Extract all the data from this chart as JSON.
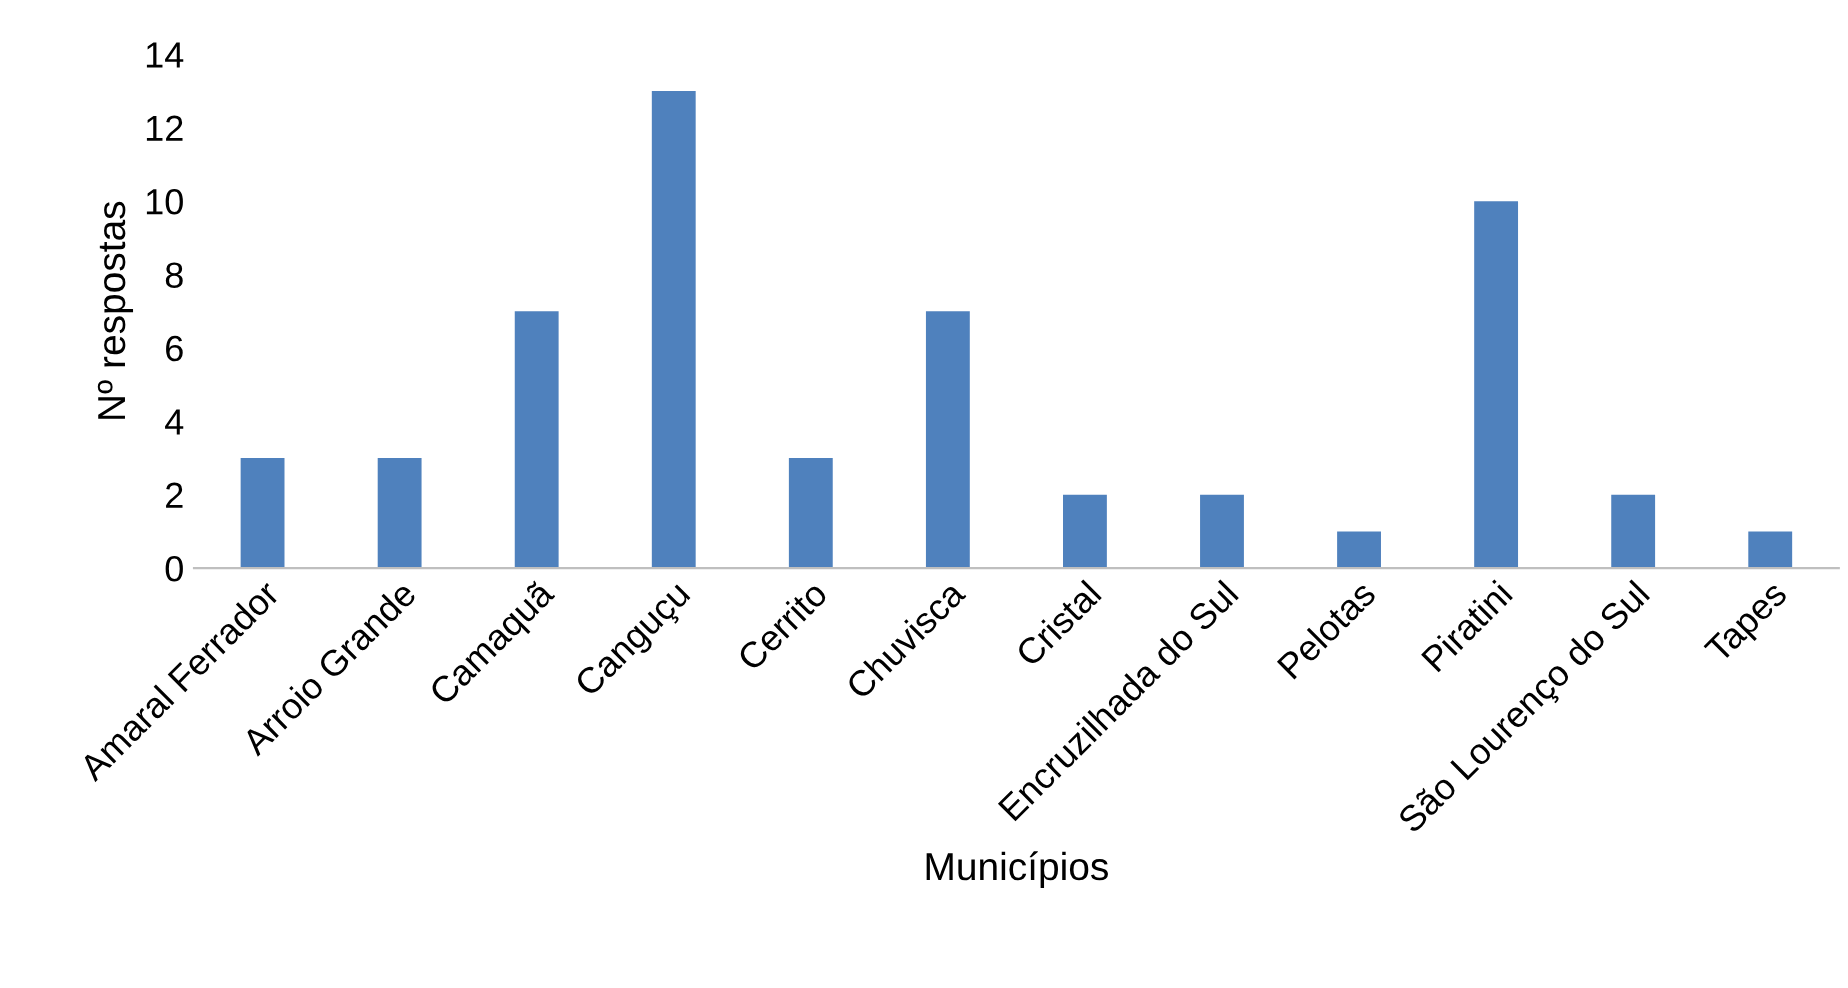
{
  "chart_data": {
    "type": "bar",
    "xlabel": "Municípios",
    "ylabel": "Nº respostas",
    "categories": [
      "Amaral Ferrador",
      "Arroio Grande",
      "Camaquã",
      "Canguçu",
      "Cerrito",
      "Chuvisca",
      "Cristal",
      "Encruzilhada do Sul",
      "Pelotas",
      "Piratini",
      "São Lourenço do Sul",
      "Tapes"
    ],
    "values": [
      3,
      3,
      7,
      13,
      3,
      7,
      2,
      2,
      1,
      10,
      2,
      1
    ],
    "color": "#4f81bd",
    "ylim": [
      0,
      14
    ],
    "yticks": [
      0,
      2,
      4,
      6,
      8,
      10,
      12,
      14
    ],
    "grid": false,
    "legend": false
  }
}
